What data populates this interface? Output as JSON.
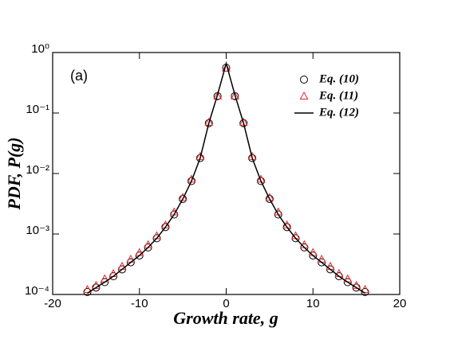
{
  "chart_data": {
    "type": "scatter",
    "annotation": "(a)",
    "xlabel": "Growth rate, g",
    "ylabel": "PDF, P(g)",
    "xlim": [
      -20,
      20
    ],
    "xticks": [
      -20,
      -10,
      0,
      10,
      20
    ],
    "ylim": [
      0.0001,
      1
    ],
    "yscale": "log",
    "yticks": [
      {
        "value": 1,
        "label": "10⁰"
      },
      {
        "value": 0.1,
        "label": "10⁻¹"
      },
      {
        "value": 0.01,
        "label": "10⁻²"
      },
      {
        "value": 0.001,
        "label": "10⁻³"
      },
      {
        "value": 0.0001,
        "label": "10⁻⁴"
      }
    ],
    "legend": "upper right",
    "x": [
      -16,
      -15,
      -14,
      -13,
      -12,
      -11,
      -10,
      -9,
      -8,
      -7,
      -6,
      -5,
      -4,
      -3,
      -2,
      -1,
      0,
      1,
      2,
      3,
      4,
      5,
      6,
      7,
      8,
      9,
      10,
      11,
      12,
      13,
      14,
      15,
      16
    ],
    "series": [
      {
        "name": "Eq. (10)",
        "kind": "scatter",
        "marker": "circle",
        "color": "#000000",
        "values": [
          0.00011,
          0.00013,
          0.00016,
          0.0002,
          0.00026,
          0.00034,
          0.00044,
          0.0006,
          0.00085,
          0.0013,
          0.0021,
          0.0038,
          0.0075,
          0.018,
          0.068,
          0.19,
          0.56,
          0.19,
          0.068,
          0.018,
          0.0075,
          0.0038,
          0.0021,
          0.0013,
          0.00085,
          0.0006,
          0.00044,
          0.00034,
          0.00026,
          0.0002,
          0.00016,
          0.00013,
          0.00011
        ]
      },
      {
        "name": "Eq. (11)",
        "kind": "scatter",
        "marker": "triangle",
        "color": "#e8262b",
        "values": [
          0.00012,
          0.00014,
          0.00018,
          0.00022,
          0.00029,
          0.00038,
          0.00049,
          0.00066,
          0.00093,
          0.0014,
          0.0023,
          0.004,
          0.008,
          0.019,
          0.07,
          0.19,
          0.55,
          0.19,
          0.07,
          0.019,
          0.008,
          0.004,
          0.0023,
          0.0014,
          0.00093,
          0.00066,
          0.00049,
          0.00038,
          0.00029,
          0.00022,
          0.00018,
          0.00014,
          0.00012
        ]
      },
      {
        "name": "Eq. (12)",
        "kind": "line",
        "color": "#000000",
        "values": [
          0.000105,
          0.00013,
          0.00016,
          0.0002,
          0.00026,
          0.00034,
          0.00044,
          0.0006,
          0.00085,
          0.0013,
          0.0021,
          0.0038,
          0.0075,
          0.018,
          0.068,
          0.2,
          0.66,
          0.2,
          0.068,
          0.018,
          0.0075,
          0.0038,
          0.0021,
          0.0013,
          0.00085,
          0.0006,
          0.00044,
          0.00034,
          0.00026,
          0.0002,
          0.00016,
          0.00013,
          0.000105
        ]
      }
    ]
  }
}
